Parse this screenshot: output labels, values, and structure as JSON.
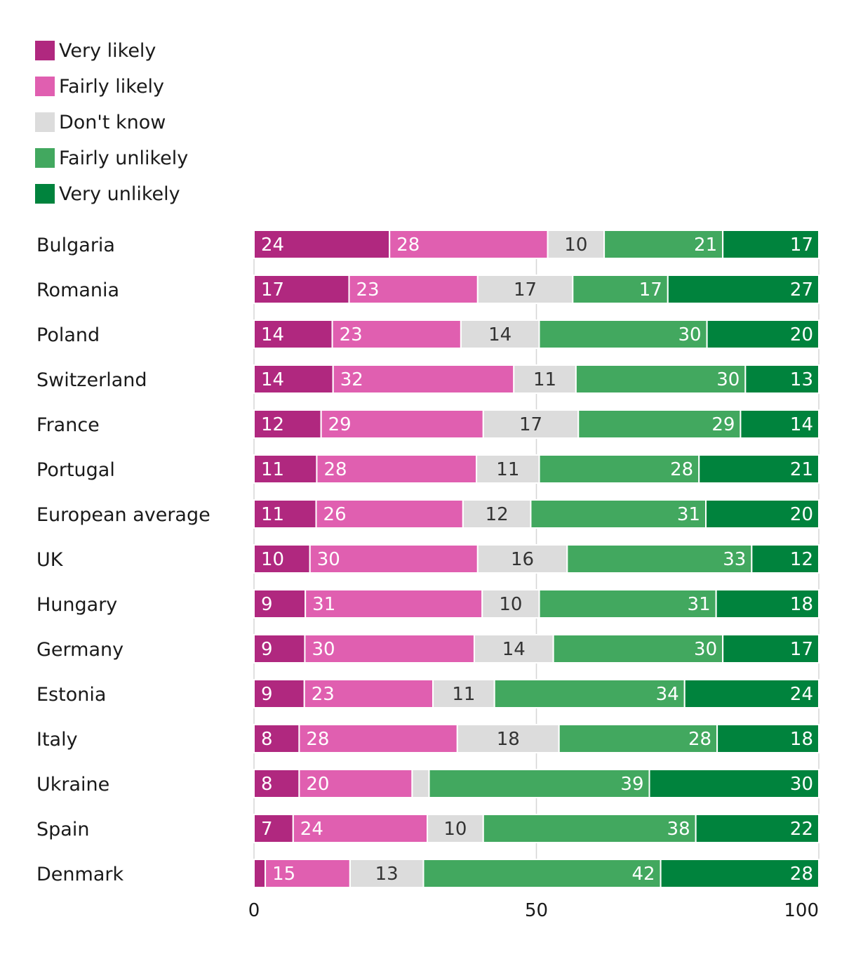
{
  "chart_data": {
    "type": "bar",
    "orientation": "horizontal",
    "stacked": true,
    "title": "",
    "xlabel": "",
    "ylabel": "",
    "xlim": [
      0,
      100
    ],
    "xticks": [
      "0",
      "50",
      "100"
    ],
    "grid": true,
    "legend_position": "top-left",
    "categories": [
      "Bulgaria",
      "Romania",
      "Poland",
      "Switzerland",
      "France",
      "Portugal",
      "European average",
      "UK",
      "Hungary",
      "Germany",
      "Estonia",
      "Italy",
      "Ukraine",
      "Spain",
      "Denmark"
    ],
    "series": [
      {
        "name": "Very likely",
        "color": "#b0287f",
        "values": [
          24,
          17,
          14,
          14,
          12,
          11,
          11,
          10,
          9,
          9,
          9,
          8,
          8,
          7,
          2
        ],
        "labels": [
          "24",
          "17",
          "14",
          "14",
          "12",
          "11",
          "11",
          "10",
          "9",
          "9",
          "9",
          "8",
          "8",
          "7",
          ""
        ],
        "label_color": "#ffffff"
      },
      {
        "name": "Fairly likely",
        "color": "#e05fb0",
        "values": [
          28,
          23,
          23,
          32,
          29,
          28,
          26,
          30,
          31,
          30,
          23,
          28,
          20,
          24,
          15
        ],
        "labels": [
          "28",
          "23",
          "23",
          "32",
          "29",
          "28",
          "26",
          "30",
          "31",
          "30",
          "23",
          "28",
          "20",
          "24",
          "15"
        ],
        "label_color": "#ffffff"
      },
      {
        "name": "Don't know",
        "color": "#dcdcdc",
        "values": [
          10,
          17,
          14,
          11,
          17,
          11,
          12,
          16,
          10,
          14,
          11,
          18,
          3,
          10,
          13
        ],
        "labels": [
          "10",
          "17",
          "14",
          "11",
          "17",
          "11",
          "12",
          "16",
          "10",
          "14",
          "11",
          "18",
          "",
          "10",
          "13"
        ],
        "label_color": "#333333"
      },
      {
        "name": "Fairly unlikely",
        "color": "#42a85f",
        "values": [
          21,
          17,
          30,
          30,
          29,
          28,
          31,
          33,
          31,
          30,
          34,
          28,
          39,
          38,
          42
        ],
        "labels": [
          "21",
          "17",
          "30",
          "30",
          "29",
          "28",
          "31",
          "33",
          "31",
          "30",
          "34",
          "28",
          "39",
          "38",
          "42"
        ],
        "label_color": "#ffffff"
      },
      {
        "name": "Very unlikely",
        "color": "#00833d",
        "values": [
          17,
          27,
          20,
          13,
          14,
          21,
          20,
          12,
          18,
          17,
          24,
          18,
          30,
          22,
          28
        ],
        "labels": [
          "17",
          "27",
          "20",
          "13",
          "14",
          "21",
          "20",
          "12",
          "18",
          "17",
          "24",
          "18",
          "30",
          "22",
          "28"
        ],
        "label_color": "#ffffff"
      }
    ]
  }
}
